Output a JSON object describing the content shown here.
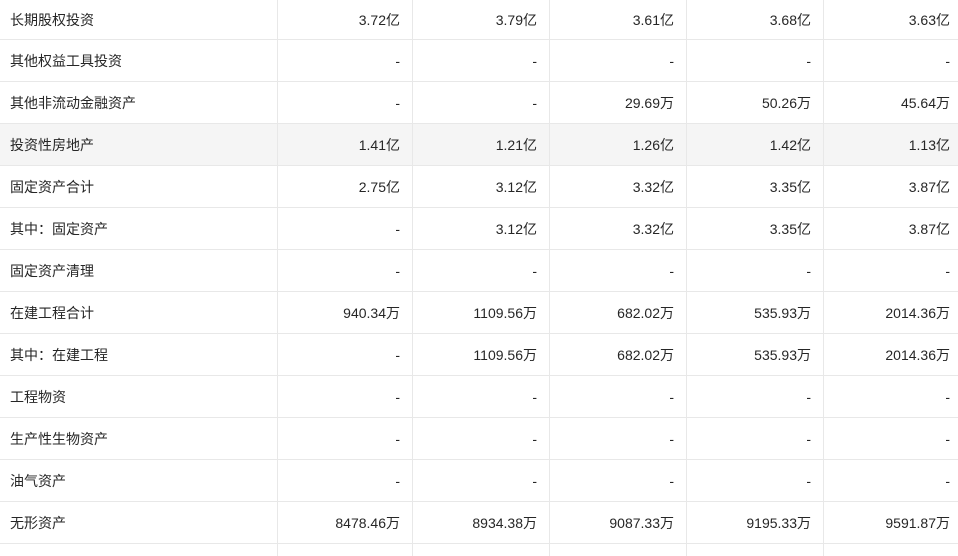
{
  "colors": {
    "border": "#e8e8e8",
    "row_highlight": "#f5f5f5",
    "text": "#262626",
    "background": "#ffffff"
  },
  "table": {
    "rows": [
      {
        "label": "长期股权投资",
        "values": [
          "3.72亿",
          "3.79亿",
          "3.61亿",
          "3.68亿",
          "3.63亿"
        ],
        "highlight": false
      },
      {
        "label": "其他权益工具投资",
        "values": [
          "-",
          "-",
          "-",
          "-",
          "-"
        ],
        "highlight": false
      },
      {
        "label": "其他非流动金融资产",
        "values": [
          "-",
          "-",
          "29.69万",
          "50.26万",
          "45.64万"
        ],
        "highlight": false
      },
      {
        "label": "投资性房地产",
        "values": [
          "1.41亿",
          "1.21亿",
          "1.26亿",
          "1.42亿",
          "1.13亿"
        ],
        "highlight": true
      },
      {
        "label": "固定资产合计",
        "values": [
          "2.75亿",
          "3.12亿",
          "3.32亿",
          "3.35亿",
          "3.87亿"
        ],
        "highlight": false
      },
      {
        "label": "其中：固定资产",
        "values": [
          "-",
          "3.12亿",
          "3.32亿",
          "3.35亿",
          "3.87亿"
        ],
        "highlight": false
      },
      {
        "label": "固定资产清理",
        "values": [
          "-",
          "-",
          "-",
          "-",
          "-"
        ],
        "highlight": false
      },
      {
        "label": "在建工程合计",
        "values": [
          "940.34万",
          "1109.56万",
          "682.02万",
          "535.93万",
          "2014.36万"
        ],
        "highlight": false
      },
      {
        "label": "其中：在建工程",
        "values": [
          "-",
          "1109.56万",
          "682.02万",
          "535.93万",
          "2014.36万"
        ],
        "highlight": false
      },
      {
        "label": "工程物资",
        "values": [
          "-",
          "-",
          "-",
          "-",
          "-"
        ],
        "highlight": false
      },
      {
        "label": "生产性生物资产",
        "values": [
          "-",
          "-",
          "-",
          "-",
          "-"
        ],
        "highlight": false
      },
      {
        "label": "油气资产",
        "values": [
          "-",
          "-",
          "-",
          "-",
          "-"
        ],
        "highlight": false
      },
      {
        "label": "无形资产",
        "values": [
          "8478.46万",
          "8934.38万",
          "9087.33万",
          "9195.33万",
          "9591.87万"
        ],
        "highlight": false
      },
      {
        "label": "",
        "values": [
          "",
          "",
          "",
          "",
          ""
        ],
        "highlight": false
      }
    ]
  }
}
